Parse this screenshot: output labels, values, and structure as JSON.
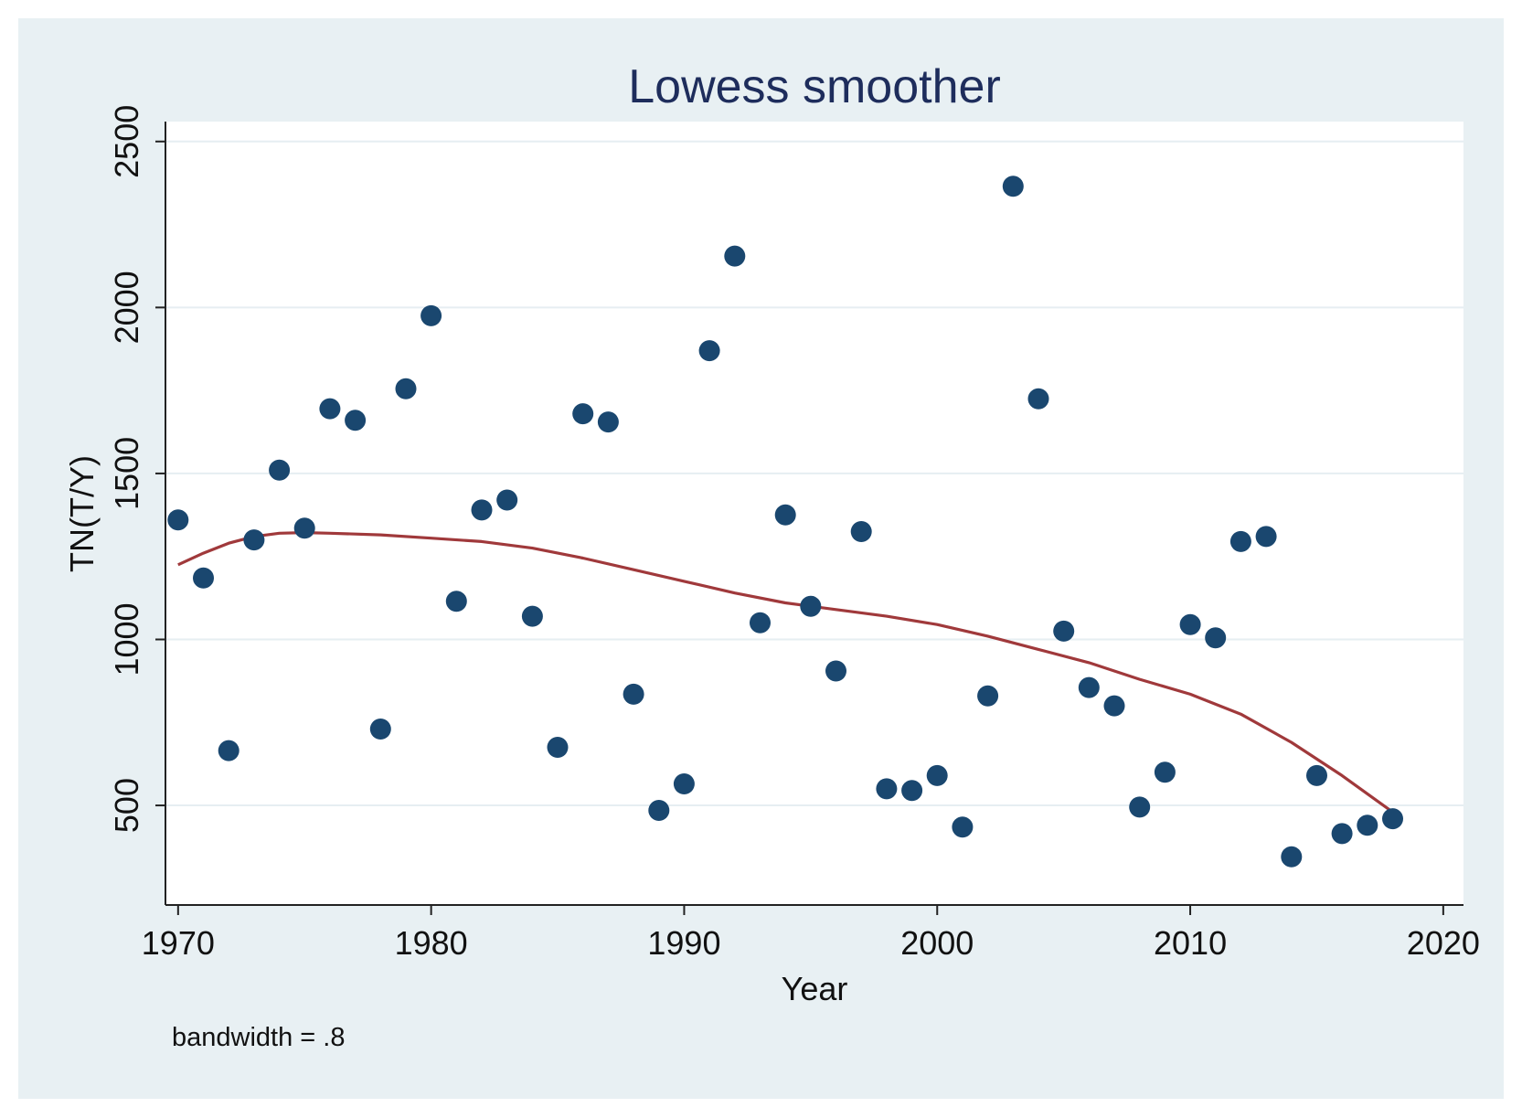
{
  "chart_data": {
    "type": "scatter",
    "title": "Lowess smoother",
    "xlabel": "Year",
    "ylabel": "TN(T/Y)",
    "note": "bandwidth = .8",
    "xlim": [
      1969.5,
      2020.8
    ],
    "ylim": [
      200,
      2560
    ],
    "xticks": [
      1970,
      1980,
      1990,
      2000,
      2010,
      2020
    ],
    "yticks": [
      500,
      1000,
      1500,
      2000,
      2500
    ],
    "grid": true,
    "colors": {
      "outer_background": "#e8f0f3",
      "plot_background": "#ffffff",
      "gridline": "#e6eef2",
      "marker": "#1a476f",
      "smoother": "#a0393b",
      "title": "#1e2d5c"
    },
    "series": [
      {
        "name": "TN(T/Y)",
        "kind": "scatter",
        "x": [
          1970,
          1971,
          1972,
          1973,
          1974,
          1975,
          1976,
          1977,
          1978,
          1979,
          1980,
          1981,
          1982,
          1983,
          1984,
          1985,
          1986,
          1987,
          1988,
          1989,
          1990,
          1991,
          1992,
          1993,
          1994,
          1995,
          1996,
          1997,
          1998,
          1999,
          2000,
          2001,
          2002,
          2003,
          2004,
          2005,
          2006,
          2007,
          2008,
          2009,
          2010,
          2011,
          2012,
          2013,
          2014,
          2015,
          2016,
          2017,
          2018
        ],
        "y": [
          1360,
          1185,
          665,
          1300,
          1510,
          1335,
          1695,
          1660,
          730,
          1755,
          1975,
          1115,
          1390,
          1420,
          1070,
          675,
          1680,
          1655,
          835,
          485,
          565,
          1870,
          2155,
          1050,
          1375,
          1100,
          905,
          1325,
          550,
          545,
          590,
          435,
          830,
          2365,
          1725,
          1025,
          855,
          800,
          495,
          600,
          1045,
          1005,
          1295,
          1310,
          345,
          590,
          415,
          440,
          460
        ]
      },
      {
        "name": "Lowess smoother",
        "kind": "line",
        "x": [
          1970,
          1971,
          1972,
          1973,
          1974,
          1975,
          1976,
          1978,
          1980,
          1982,
          1984,
          1986,
          1988,
          1990,
          1992,
          1994,
          1996,
          1998,
          2000,
          2002,
          2004,
          2006,
          2008,
          2010,
          2012,
          2014,
          2016,
          2018
        ],
        "y": [
          1225,
          1260,
          1290,
          1310,
          1320,
          1322,
          1320,
          1315,
          1305,
          1295,
          1275,
          1245,
          1210,
          1175,
          1140,
          1110,
          1090,
          1070,
          1045,
          1010,
          970,
          930,
          880,
          835,
          775,
          690,
          590,
          480
        ]
      }
    ]
  }
}
